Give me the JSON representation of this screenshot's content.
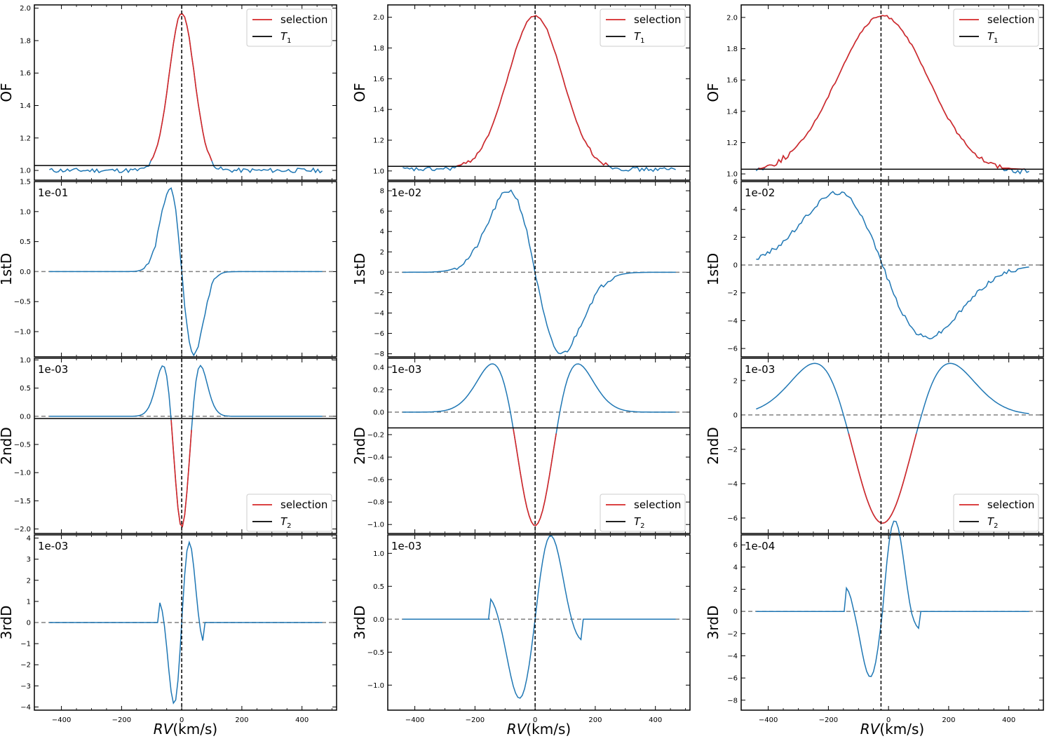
{
  "figure": {
    "xlabel_italic": "RV",
    "xlabel_unit": "(km/s)",
    "row_ylabels": [
      "OF",
      "1stD",
      "2ndD",
      "3rdD"
    ],
    "legend_selection": "selection",
    "legend_t1_base": "T",
    "legend_t1_sub": "1",
    "legend_t2_base": "T",
    "legend_t2_sub": "2",
    "xticks": [
      "−400",
      "−200",
      "0",
      "200",
      "400"
    ],
    "colors": {
      "data": "#1f77b4",
      "selection": "#d62728",
      "threshold": "#000000",
      "zero": "#808080"
    }
  },
  "chart_data": [
    {
      "type": "line",
      "column": 1,
      "rv_center": 0,
      "xlim": [
        -490,
        515
      ],
      "panels": [
        {
          "name": "OF",
          "ylim": [
            0.94,
            2.02
          ],
          "yticks": [
            "1.0",
            "1.2",
            "1.4",
            "1.6",
            "1.8",
            "2.0"
          ],
          "threshold": 1.03,
          "threshold_label": "T1",
          "legend": "top-right",
          "shape": "gauss",
          "center": 0,
          "sigma": 42,
          "amp": 0.97,
          "base": 1.0,
          "noise": 0.02
        },
        {
          "name": "1stD",
          "scale_label": "1e-01",
          "ylim": [
            -1.42,
            1.5
          ],
          "yticks": [
            "−1.0",
            "−0.5",
            "0.0",
            "0.5",
            "1.0",
            "1.5"
          ],
          "zero": true,
          "shape": "d1",
          "extreme": 1.38,
          "center": 0,
          "sigma": 40
        },
        {
          "name": "2ndD",
          "scale_label": "1e-03",
          "ylim": [
            -2.08,
            1.03
          ],
          "yticks": [
            "−2.0",
            "−1.5",
            "−1.0",
            "−0.5",
            "0.0",
            "0.5",
            "1.0"
          ],
          "zero": true,
          "threshold": -0.04,
          "threshold_label": "T2",
          "legend": "bottom-right",
          "shape": "d2",
          "min": -1.97,
          "max": 0.9,
          "center": 0,
          "sigma": 36
        },
        {
          "name": "3rdD",
          "scale_label": "1e-03",
          "ylim": [
            -4.15,
            4.15
          ],
          "yticks": [
            "−4",
            "−3",
            "−2",
            "−1",
            "0",
            "1",
            "2",
            "3",
            "4"
          ],
          "zero": true,
          "shape": "d3",
          "min": -3.8,
          "max": 3.85,
          "center": 0,
          "sigma": 34
        }
      ]
    },
    {
      "type": "line",
      "column": 2,
      "rv_center": 0,
      "xlim": [
        -490,
        515
      ],
      "panels": [
        {
          "name": "OF",
          "ylim": [
            0.94,
            2.08
          ],
          "yticks": [
            "1.0",
            "1.2",
            "1.4",
            "1.6",
            "1.8",
            "2.0"
          ],
          "threshold": 1.03,
          "threshold_label": "T1",
          "legend": "top-right",
          "shape": "gauss",
          "center": 0,
          "sigma": 90,
          "amp": 1.0,
          "base": 1.01,
          "noise": 0.02
        },
        {
          "name": "1stD",
          "scale_label": "1e-02",
          "ylim": [
            -8.3,
            8.9
          ],
          "yticks": [
            "−8",
            "−6",
            "−4",
            "−2",
            "0",
            "2",
            "4",
            "6",
            "8"
          ],
          "zero": true,
          "shape": "d1",
          "extreme": 8.0,
          "center": 0,
          "sigma": 88
        },
        {
          "name": "2ndD",
          "scale_label": "1e-03",
          "ylim": [
            -1.08,
            0.48
          ],
          "yticks": [
            "−1.0",
            "−0.8",
            "−0.6",
            "−0.4",
            "−0.2",
            "0.0",
            "0.2",
            "0.4"
          ],
          "zero": true,
          "threshold": -0.14,
          "threshold_label": "T2",
          "legend": "bottom-right",
          "shape": "d2",
          "min": -1.01,
          "max": 0.43,
          "center": 0,
          "sigma": 82
        },
        {
          "name": "3rdD",
          "scale_label": "1e-03",
          "ylim": [
            -1.38,
            1.28
          ],
          "yticks": [
            "−1.0",
            "−0.5",
            "0.0",
            "0.5",
            "1.0"
          ],
          "zero": true,
          "shape": "d3",
          "min": -1.27,
          "max": 1.2,
          "center": 0,
          "sigma": 70
        }
      ]
    },
    {
      "type": "line",
      "column": 3,
      "rv_center": -25,
      "xlim": [
        -490,
        515
      ],
      "panels": [
        {
          "name": "OF",
          "ylim": [
            0.96,
            2.08
          ],
          "yticks": [
            "1.0",
            "1.2",
            "1.4",
            "1.6",
            "1.8",
            "2.0"
          ],
          "threshold": 1.03,
          "threshold_label": "T1",
          "legend": "top-right",
          "shape": "gauss",
          "center": -20,
          "sigma": 150,
          "amp": 1.0,
          "base": 1.01,
          "noise": 0.025
        },
        {
          "name": "1stD",
          "scale_label": "1e-02",
          "ylim": [
            -6.6,
            6.0
          ],
          "yticks": [
            "−6",
            "−4",
            "−2",
            "0",
            "2",
            "4",
            "6"
          ],
          "zero": true,
          "shape": "d1",
          "extreme": 5.2,
          "center": -20,
          "sigma": 150
        },
        {
          "name": "2ndD",
          "scale_label": "1e-03",
          "ylim": [
            -6.9,
            3.3
          ],
          "yticks": [
            "−6",
            "−4",
            "−2",
            "0",
            "2"
          ],
          "zero": true,
          "threshold": -0.75,
          "threshold_label": "T2",
          "legend": "bottom-right",
          "shape": "d2",
          "min": -6.3,
          "max": 3.0,
          "center": -20,
          "sigma": 130
        },
        {
          "name": "3rdD",
          "scale_label": "1e-04",
          "ylim": [
            -8.9,
            6.9
          ],
          "yticks": [
            "−8",
            "−6",
            "−4",
            "−2",
            "0",
            "2",
            "4",
            "6"
          ],
          "zero": true,
          "shape": "d3",
          "min": -8.2,
          "max": 5.9,
          "center": -20,
          "sigma": 55
        }
      ]
    }
  ]
}
